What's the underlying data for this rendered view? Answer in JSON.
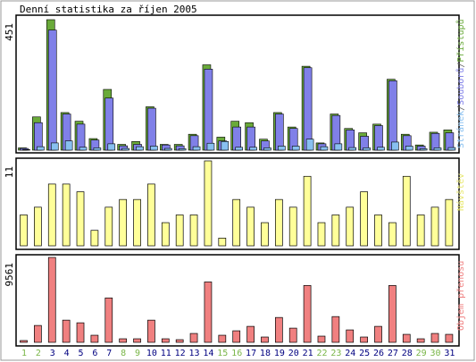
{
  "chart_data": {
    "type": "bar",
    "title": "Denní statistika za říjen 2005",
    "categories": [
      "1",
      "2",
      "3",
      "4",
      "5",
      "6",
      "7",
      "8",
      "9",
      "10",
      "11",
      "12",
      "13",
      "14",
      "15",
      "16",
      "17",
      "18",
      "19",
      "20",
      "21",
      "22",
      "23",
      "24",
      "25",
      "26",
      "27",
      "28",
      "29",
      "30",
      "31"
    ],
    "weekend_days": [
      "1",
      "2",
      "8",
      "9",
      "15",
      "16",
      "22",
      "23",
      "29",
      "30"
    ],
    "panels": [
      {
        "label_parts": [
          "Stránek",
          "Souborů",
          "Přístupů"
        ],
        "ymax_label": "451",
        "ymax": 451,
        "series": [
          {
            "name": "Přístupů",
            "color": "#6aaa3a",
            "values": [
              8,
              115,
              451,
              130,
              100,
              40,
              210,
              20,
              30,
              150,
              20,
              20,
              55,
              295,
              45,
              100,
              95,
              38,
              130,
              80,
              290,
              25,
              125,
              75,
              60,
              90,
              245,
              55,
              18,
              62,
              70
            ]
          },
          {
            "name": "Souborů",
            "color": "#8080e8",
            "values": [
              6,
              95,
              415,
              125,
              90,
              35,
              180,
              15,
              20,
              145,
              18,
              15,
              50,
              280,
              32,
              80,
              80,
              32,
              125,
              75,
              285,
              22,
              120,
              70,
              48,
              85,
              240,
              50,
              14,
              58,
              60
            ]
          },
          {
            "name": "Stránek",
            "color": "#88c0f0",
            "values": [
              2,
              12,
              25,
              32,
              10,
              8,
              22,
              6,
              12,
              14,
              6,
              5,
              12,
              24,
              30,
              10,
              10,
              8,
              14,
              14,
              38,
              12,
              22,
              9,
              8,
              10,
              28,
              14,
              5,
              8,
              9
            ]
          }
        ]
      },
      {
        "label": "Návštěv",
        "ymax_label": "11",
        "ymax": 11,
        "series": [
          {
            "name": "Návštěv",
            "color": "#ffff99",
            "values": [
              4,
              5,
              8,
              8,
              7,
              2,
              5,
              6,
              6,
              8,
              3,
              4,
              4,
              11,
              1,
              6,
              5,
              3,
              6,
              5,
              9,
              3,
              4,
              5,
              7,
              4,
              3,
              9,
              4,
              5,
              6
            ]
          }
        ]
      },
      {
        "label": "Objem přenosu",
        "ymax_label": "9561",
        "ymax": 9561,
        "series": [
          {
            "name": "Objem přenosu",
            "color": "#f08080",
            "values": [
              200,
              1900,
              9561,
              2500,
              2200,
              800,
              5000,
              400,
              400,
              2500,
              400,
              300,
              1000,
              6800,
              800,
              1300,
              1800,
              600,
              2800,
              1600,
              6400,
              700,
              2900,
              1400,
              600,
              1800,
              6400,
              900,
              400,
              1000,
              900
            ]
          }
        ]
      }
    ],
    "colors": {
      "weekday_label": "#000080",
      "weekend_label": "#7ab648",
      "accesses": "#6aaa3a",
      "files": "#8080e8",
      "pages": "#88c0f0",
      "visits": "#ffff99",
      "volume": "#f08080"
    }
  }
}
